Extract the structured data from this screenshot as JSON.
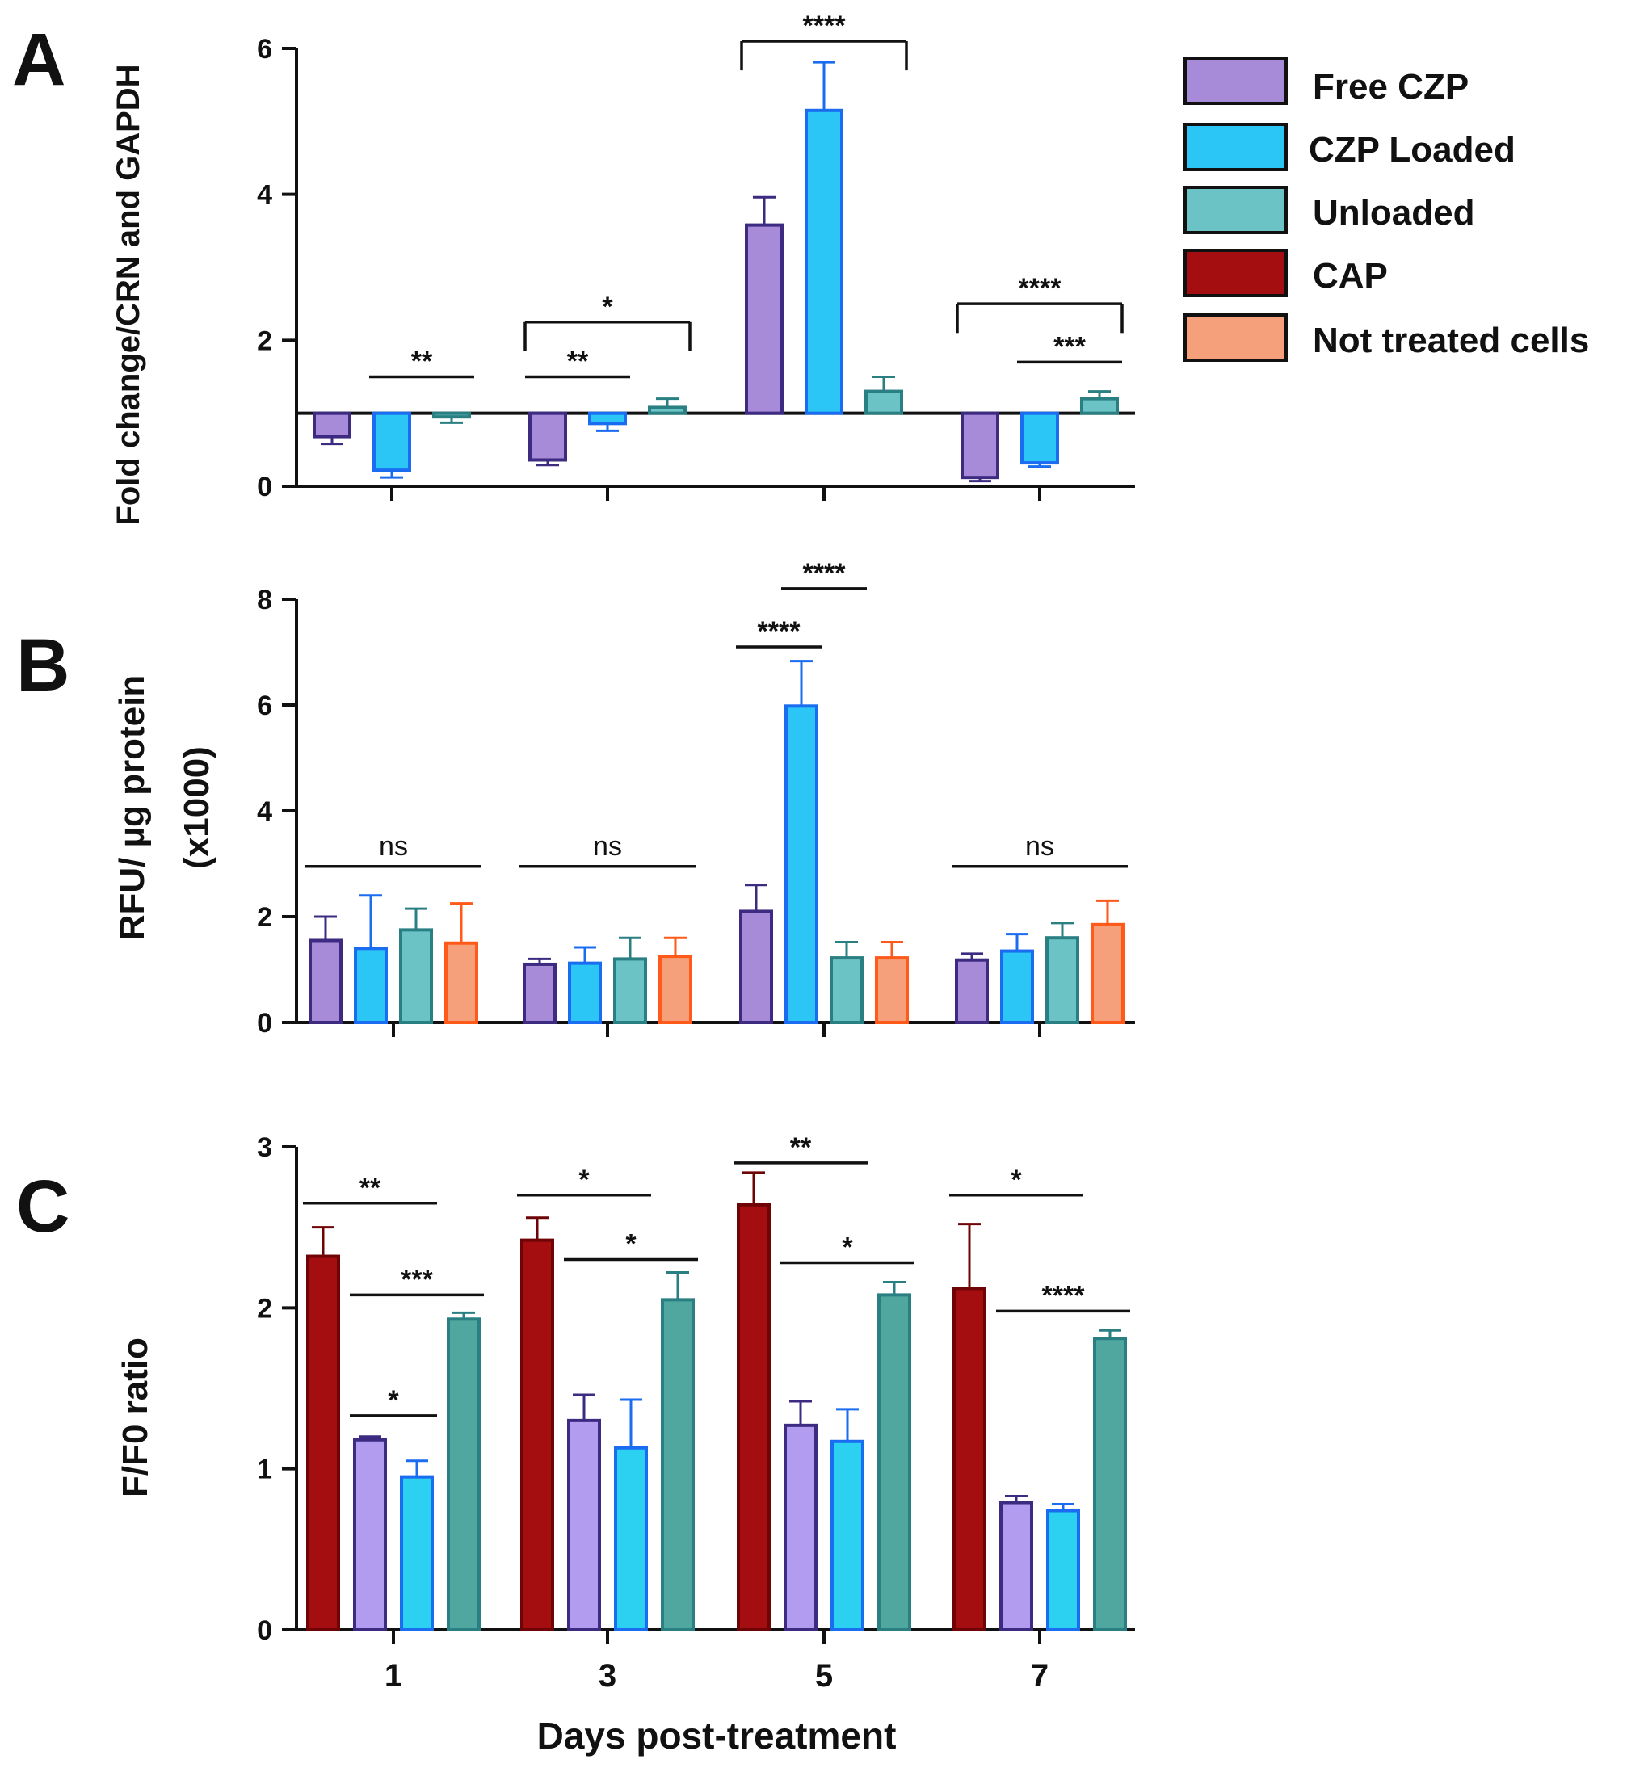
{
  "colors": {
    "free_czp": "#a78bd8",
    "free_czp_edge": "#3d2b82",
    "czp_loaded": "#2bc6f5",
    "czp_loaded_edge": "#1a6cf0",
    "unloaded": "#6cc3c6",
    "unloaded_edge": "#2a7f82",
    "cap": "#a50e10",
    "cap_edge": "#6e0406",
    "not_treated": "#f5a07a",
    "not_treated_edge": "#ff5a1a",
    "c_free_czp": "#b19cf0",
    "c_czp_loaded": "#2cd0f0",
    "c_unloaded": "#4fa79f"
  },
  "legend": [
    {
      "label": "Free CZP",
      "color": "#a78bd8"
    },
    {
      "label": "CZP Loaded",
      "color": "#2bc6f5"
    },
    {
      "label": "Unloaded",
      "color": "#6cc3c6"
    },
    {
      "label": "CAP",
      "color": "#a50e10"
    },
    {
      "label": "Not treated cells",
      "color": "#f5a07a"
    }
  ],
  "xlabel": "Days post-treatment",
  "chart_data": [
    {
      "panel": "A",
      "type": "bar",
      "ylabel": "Fold change/CRN and GAPDH",
      "ylim": [
        0,
        6
      ],
      "yticks": [
        0,
        2,
        4,
        6
      ],
      "baseline": 1,
      "categories": [
        "1",
        "3",
        "5",
        "7"
      ],
      "series": [
        {
          "name": "Free CZP",
          "values": [
            0.68,
            0.36,
            3.58,
            0.12
          ],
          "errors": [
            0.1,
            0.07,
            0.38,
            0.05
          ]
        },
        {
          "name": "CZP Loaded",
          "values": [
            0.22,
            0.86,
            5.15,
            0.32
          ],
          "errors": [
            0.1,
            0.1,
            0.66,
            0.05
          ]
        },
        {
          "name": "Unloaded",
          "values": [
            0.95,
            1.08,
            1.3,
            1.2
          ],
          "errors": [
            0.08,
            0.12,
            0.2,
            0.1
          ]
        }
      ],
      "significance": [
        {
          "label": "**",
          "group": 0,
          "from": 1,
          "to": 2,
          "y": 1.5,
          "drop": 0
        },
        {
          "label": "**",
          "group": 1,
          "from": 0,
          "to": 1,
          "y": 1.5,
          "drop": 0
        },
        {
          "label": "*",
          "group": 1,
          "from": 0,
          "to": 2,
          "y": 2.25,
          "drop": 0.4
        },
        {
          "label": "****",
          "group": 2,
          "from": 0,
          "to": 2,
          "y": 6.1,
          "drop": 0.4
        },
        {
          "label": "****",
          "group": 3,
          "from": 0,
          "to": 2,
          "y": 2.5,
          "drop": 0.4
        },
        {
          "label": "***",
          "group": 3,
          "from": 1,
          "to": 2,
          "y": 1.7,
          "drop": 0
        }
      ]
    },
    {
      "panel": "B",
      "type": "bar",
      "ylabel": "RFU/ µg protein",
      "ylabel2": "(x1000)",
      "ylim": [
        0,
        8
      ],
      "yticks": [
        0,
        2,
        4,
        6,
        8
      ],
      "categories": [
        "1",
        "3",
        "5",
        "7"
      ],
      "series": [
        {
          "name": "Free CZP",
          "values": [
            1.55,
            1.1,
            2.1,
            1.18
          ],
          "errors": [
            0.45,
            0.1,
            0.5,
            0.12
          ]
        },
        {
          "name": "CZP Loaded",
          "values": [
            1.4,
            1.12,
            5.98,
            1.35
          ],
          "errors": [
            1.0,
            0.3,
            0.85,
            0.32
          ]
        },
        {
          "name": "Unloaded",
          "values": [
            1.75,
            1.2,
            1.22,
            1.6
          ],
          "errors": [
            0.4,
            0.4,
            0.3,
            0.28
          ]
        },
        {
          "name": "Not treated cells",
          "values": [
            1.5,
            1.25,
            1.22,
            1.85
          ],
          "errors": [
            0.75,
            0.35,
            0.3,
            0.45
          ]
        }
      ],
      "significance": [
        {
          "label": "ns",
          "group": 0,
          "from": 0,
          "to": 3,
          "y": 2.95,
          "drop": 0,
          "ns": true
        },
        {
          "label": "ns",
          "group": 1,
          "from": 0,
          "to": 3,
          "y": 2.95,
          "drop": 0,
          "ns": true
        },
        {
          "label": "ns",
          "group": 3,
          "from": 0,
          "to": 3,
          "y": 2.95,
          "drop": 0,
          "ns": true
        },
        {
          "label": "****",
          "group": 2,
          "from": 0,
          "to": 1,
          "y": 7.1,
          "drop": 0
        },
        {
          "label": "****",
          "group": 2,
          "from": 1,
          "to": 2,
          "y": 8.2,
          "drop": 0
        }
      ]
    },
    {
      "panel": "C",
      "type": "bar",
      "ylabel": "F/F0 ratio",
      "ylim": [
        0,
        3
      ],
      "yticks": [
        0,
        1,
        2,
        3
      ],
      "categories": [
        "1",
        "3",
        "5",
        "7"
      ],
      "series": [
        {
          "name": "CAP",
          "values": [
            2.32,
            2.42,
            2.64,
            2.12
          ],
          "errors": [
            0.18,
            0.14,
            0.2,
            0.4
          ]
        },
        {
          "name": "Free CZP",
          "values": [
            1.18,
            1.3,
            1.27,
            0.79
          ],
          "errors": [
            0.02,
            0.16,
            0.15,
            0.04
          ]
        },
        {
          "name": "CZP Loaded",
          "values": [
            0.95,
            1.13,
            1.17,
            0.74
          ],
          "errors": [
            0.1,
            0.3,
            0.2,
            0.04
          ]
        },
        {
          "name": "Unloaded",
          "values": [
            1.93,
            2.05,
            2.08,
            1.81
          ],
          "errors": [
            0.04,
            0.17,
            0.08,
            0.05
          ]
        }
      ],
      "significance": [
        {
          "label": "**",
          "group": 0,
          "from": 0,
          "to": 2,
          "y": 2.65,
          "drop": 0
        },
        {
          "label": "***",
          "group": 0,
          "from": 1,
          "to": 3,
          "y": 2.08,
          "drop": 0
        },
        {
          "label": "*",
          "group": 0,
          "from": 1,
          "to": 2,
          "y": 1.33,
          "drop": 0
        },
        {
          "label": "*",
          "group": 1,
          "from": 0,
          "to": 2,
          "y": 2.7,
          "drop": 0
        },
        {
          "label": "*",
          "group": 1,
          "from": 1,
          "to": 3,
          "y": 2.3,
          "drop": 0
        },
        {
          "label": "**",
          "group": 2,
          "from": 0,
          "to": 2,
          "y": 2.9,
          "drop": 0
        },
        {
          "label": "*",
          "group": 2,
          "from": 1,
          "to": 3,
          "y": 2.28,
          "drop": 0
        },
        {
          "label": "*",
          "group": 3,
          "from": 0,
          "to": 2,
          "y": 2.7,
          "drop": 0
        },
        {
          "label": "****",
          "group": 3,
          "from": 1,
          "to": 3,
          "y": 1.98,
          "drop": 0
        }
      ]
    }
  ]
}
